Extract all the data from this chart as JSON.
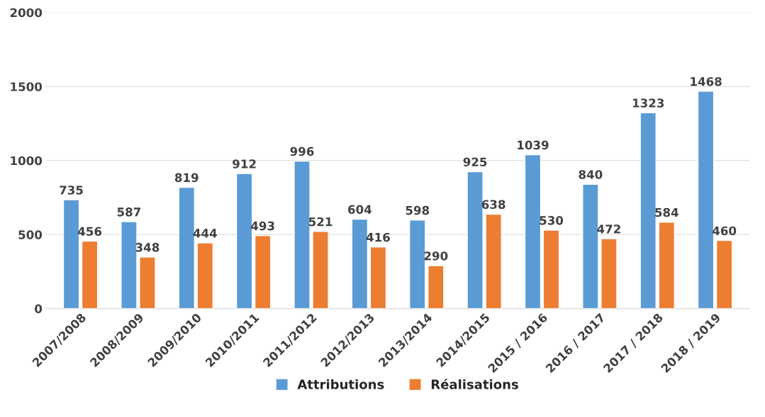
{
  "chart_data": {
    "type": "bar",
    "categories": [
      "2007/2008",
      "2008/2009",
      "2009/2010",
      "2010/2011",
      "2011/2012",
      "2012/2013",
      "2013/2014",
      "2014/2015",
      "2015 / 2016",
      "2016 / 2017",
      "2017 / 2018",
      "2018 / 2019"
    ],
    "series": [
      {
        "name": "Attributions",
        "color": "#5b9bd5",
        "values": [
          735,
          587,
          819,
          912,
          996,
          604,
          598,
          925,
          1039,
          840,
          1323,
          1468
        ]
      },
      {
        "name": "Réalisations",
        "color": "#ed7d31",
        "values": [
          456,
          348,
          444,
          493,
          521,
          416,
          290,
          638,
          530,
          472,
          584,
          460
        ]
      }
    ],
    "ylim": [
      0,
      2000
    ],
    "yticks": [
      0,
      500,
      1000,
      1500,
      2000
    ],
    "grid": "y",
    "legend": "bottom",
    "data_labels": true
  }
}
